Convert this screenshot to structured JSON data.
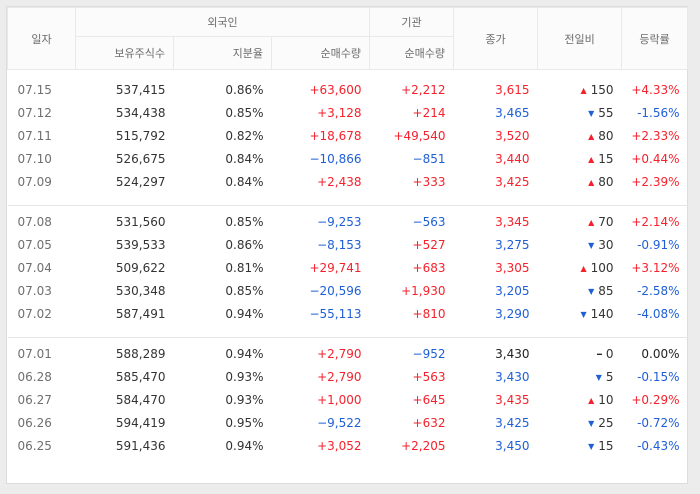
{
  "header": {
    "date": "일자",
    "foreign": "외국인",
    "holdings": "보유주식수",
    "ratio": "지분율",
    "foreign_net": "순매수량",
    "institution": "기관",
    "inst_net": "순매수량",
    "close": "종가",
    "change": "전일비",
    "rate": "등락률"
  },
  "colors": {
    "up": "#f5222d",
    "down": "#1f5fd6",
    "flat": "#222222"
  },
  "groups": [
    [
      {
        "date": "07.15",
        "holdings": "537,415",
        "ratio": "0.86%",
        "foreign_net": "+63,600",
        "inst_net": "+2,212",
        "close": "3,615",
        "change_dir": "up",
        "change": "150",
        "rate": "+4.33%"
      },
      {
        "date": "07.12",
        "holdings": "534,438",
        "ratio": "0.85%",
        "foreign_net": "+3,128",
        "inst_net": "+214",
        "close": "3,465",
        "change_dir": "down",
        "change": "55",
        "rate": "-1.56%"
      },
      {
        "date": "07.11",
        "holdings": "515,792",
        "ratio": "0.82%",
        "foreign_net": "+18,678",
        "inst_net": "+49,540",
        "close": "3,520",
        "change_dir": "up",
        "change": "80",
        "rate": "+2.33%"
      },
      {
        "date": "07.10",
        "holdings": "526,675",
        "ratio": "0.84%",
        "foreign_net": "−10,866",
        "inst_net": "−851",
        "close": "3,440",
        "change_dir": "up",
        "change": "15",
        "rate": "+0.44%"
      },
      {
        "date": "07.09",
        "holdings": "524,297",
        "ratio": "0.84%",
        "foreign_net": "+2,438",
        "inst_net": "+333",
        "close": "3,425",
        "change_dir": "up",
        "change": "80",
        "rate": "+2.39%"
      }
    ],
    [
      {
        "date": "07.08",
        "holdings": "531,560",
        "ratio": "0.85%",
        "foreign_net": "−9,253",
        "inst_net": "−563",
        "close": "3,345",
        "change_dir": "up",
        "change": "70",
        "rate": "+2.14%"
      },
      {
        "date": "07.05",
        "holdings": "539,533",
        "ratio": "0.86%",
        "foreign_net": "−8,153",
        "inst_net": "+527",
        "close": "3,275",
        "change_dir": "down",
        "change": "30",
        "rate": "-0.91%"
      },
      {
        "date": "07.04",
        "holdings": "509,622",
        "ratio": "0.81%",
        "foreign_net": "+29,741",
        "inst_net": "+683",
        "close": "3,305",
        "change_dir": "up",
        "change": "100",
        "rate": "+3.12%"
      },
      {
        "date": "07.03",
        "holdings": "530,348",
        "ratio": "0.85%",
        "foreign_net": "−20,596",
        "inst_net": "+1,930",
        "close": "3,205",
        "change_dir": "down",
        "change": "85",
        "rate": "-2.58%"
      },
      {
        "date": "07.02",
        "holdings": "587,491",
        "ratio": "0.94%",
        "foreign_net": "−55,113",
        "inst_net": "+810",
        "close": "3,290",
        "change_dir": "down",
        "change": "140",
        "rate": "-4.08%"
      }
    ],
    [
      {
        "date": "07.01",
        "holdings": "588,289",
        "ratio": "0.94%",
        "foreign_net": "+2,790",
        "inst_net": "−952",
        "close": "3,430",
        "change_dir": "flat",
        "change": "0",
        "rate": "0.00%"
      },
      {
        "date": "06.28",
        "holdings": "585,470",
        "ratio": "0.93%",
        "foreign_net": "+2,790",
        "inst_net": "+563",
        "close": "3,430",
        "change_dir": "down",
        "change": "5",
        "rate": "-0.15%"
      },
      {
        "date": "06.27",
        "holdings": "584,470",
        "ratio": "0.93%",
        "foreign_net": "+1,000",
        "inst_net": "+645",
        "close": "3,435",
        "change_dir": "up",
        "change": "10",
        "rate": "+0.29%"
      },
      {
        "date": "06.26",
        "holdings": "594,419",
        "ratio": "0.95%",
        "foreign_net": "−9,522",
        "inst_net": "+632",
        "close": "3,425",
        "change_dir": "down",
        "change": "25",
        "rate": "-0.72%"
      },
      {
        "date": "06.25",
        "holdings": "591,436",
        "ratio": "0.94%",
        "foreign_net": "+3,052",
        "inst_net": "+2,205",
        "close": "3,450",
        "change_dir": "down",
        "change": "15",
        "rate": "-0.43%"
      }
    ]
  ]
}
